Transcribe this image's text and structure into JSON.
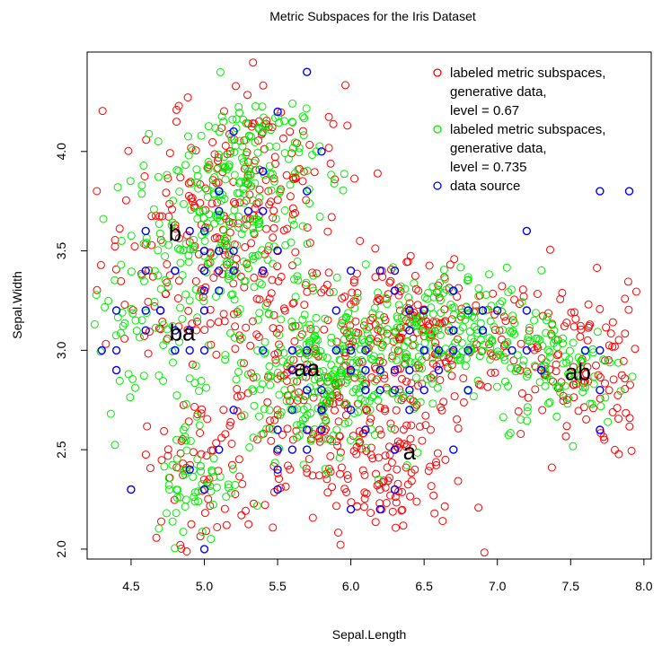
{
  "chart_data": {
    "type": "scatter",
    "title": "Metric Subspaces for the Iris Dataset",
    "xlabel": "Sepal.Length",
    "ylabel": "Sepal.Width",
    "xlim": [
      4.2,
      8.05
    ],
    "ylim": [
      1.95,
      4.5
    ],
    "xticks": [
      "4.5",
      "5.0",
      "5.5",
      "6.0",
      "6.5",
      "7.0",
      "7.5",
      "8.0"
    ],
    "yticks": [
      "2.0",
      "2.5",
      "3.0",
      "3.5",
      "4.0"
    ],
    "legend_position": "top-right",
    "legend": [
      {
        "lines": [
          "labeled metric subspaces,",
          "generative data,",
          "level = 0.67"
        ],
        "color": "#ff0000"
      },
      {
        "lines": [
          "labeled metric subspaces,",
          "generative data,",
          "level = 0.735"
        ],
        "color": "#00ee00"
      },
      {
        "lines": [
          "data source"
        ],
        "color": "#0000ff"
      }
    ],
    "annotations": [
      {
        "text": "b",
        "x": 4.8,
        "y": 3.55
      },
      {
        "text": "ba",
        "x": 4.85,
        "y": 3.05
      },
      {
        "text": "aa",
        "x": 5.7,
        "y": 2.87
      },
      {
        "text": "a",
        "x": 6.4,
        "y": 2.45
      },
      {
        "text": "ab",
        "x": 7.55,
        "y": 2.85
      }
    ],
    "series": [
      {
        "name": "labeled metric subspaces, generative data, level = 0.67",
        "color": "#ff0000",
        "clusters": [
          {
            "cx": 5.05,
            "cy": 3.45,
            "sx": 0.38,
            "sy": 0.28,
            "n": 170
          },
          {
            "cx": 5.35,
            "cy": 3.95,
            "sx": 0.3,
            "sy": 0.22,
            "n": 110
          },
          {
            "cx": 5.9,
            "cy": 2.7,
            "sx": 0.45,
            "sy": 0.28,
            "n": 250
          },
          {
            "cx": 6.45,
            "cy": 3.1,
            "sx": 0.45,
            "sy": 0.2,
            "n": 200
          },
          {
            "cx": 7.5,
            "cy": 2.9,
            "sx": 0.28,
            "sy": 0.22,
            "n": 120
          },
          {
            "cx": 6.3,
            "cy": 2.35,
            "sx": 0.25,
            "sy": 0.15,
            "n": 70
          },
          {
            "cx": 4.95,
            "cy": 2.4,
            "sx": 0.18,
            "sy": 0.18,
            "n": 50
          }
        ]
      },
      {
        "name": "labeled metric subspaces, generative data, level = 0.735",
        "color": "#00ee00",
        "clusters": [
          {
            "cx": 5.1,
            "cy": 3.55,
            "sx": 0.3,
            "sy": 0.24,
            "n": 170
          },
          {
            "cx": 5.35,
            "cy": 3.95,
            "sx": 0.22,
            "sy": 0.2,
            "n": 120
          },
          {
            "cx": 5.8,
            "cy": 2.85,
            "sx": 0.35,
            "sy": 0.2,
            "n": 260
          },
          {
            "cx": 6.6,
            "cy": 3.1,
            "sx": 0.35,
            "sy": 0.15,
            "n": 200
          },
          {
            "cx": 7.45,
            "cy": 2.9,
            "sx": 0.22,
            "sy": 0.15,
            "n": 90
          },
          {
            "cx": 4.95,
            "cy": 2.35,
            "sx": 0.15,
            "sy": 0.16,
            "n": 60
          },
          {
            "cx": 4.5,
            "cy": 3.2,
            "sx": 0.18,
            "sy": 0.25,
            "n": 50
          }
        ]
      },
      {
        "name": "data source",
        "color": "#0000ff",
        "points": [
          [
            5.1,
            3.5
          ],
          [
            4.9,
            3.0
          ],
          [
            4.7,
            3.2
          ],
          [
            4.6,
            3.1
          ],
          [
            5.0,
            3.6
          ],
          [
            5.4,
            3.9
          ],
          [
            4.6,
            3.4
          ],
          [
            5.0,
            3.4
          ],
          [
            4.4,
            2.9
          ],
          [
            4.9,
            3.1
          ],
          [
            5.4,
            3.7
          ],
          [
            4.8,
            3.4
          ],
          [
            4.8,
            3.0
          ],
          [
            4.3,
            3.0
          ],
          [
            5.8,
            4.0
          ],
          [
            5.7,
            4.4
          ],
          [
            5.4,
            3.9
          ],
          [
            5.1,
            3.5
          ],
          [
            5.7,
            3.8
          ],
          [
            5.1,
            3.8
          ],
          [
            5.4,
            3.4
          ],
          [
            5.1,
            3.7
          ],
          [
            4.6,
            3.6
          ],
          [
            5.1,
            3.3
          ],
          [
            4.8,
            3.4
          ],
          [
            5.0,
            3.0
          ],
          [
            5.0,
            3.4
          ],
          [
            5.2,
            3.5
          ],
          [
            5.2,
            3.4
          ],
          [
            4.7,
            3.2
          ],
          [
            4.8,
            3.1
          ],
          [
            5.4,
            3.4
          ],
          [
            5.2,
            4.1
          ],
          [
            5.5,
            4.2
          ],
          [
            4.9,
            3.1
          ],
          [
            5.0,
            3.2
          ],
          [
            5.5,
            3.5
          ],
          [
            4.9,
            3.6
          ],
          [
            4.4,
            3.0
          ],
          [
            5.1,
            3.4
          ],
          [
            5.0,
            3.5
          ],
          [
            4.5,
            2.3
          ],
          [
            4.4,
            3.2
          ],
          [
            5.0,
            3.5
          ],
          [
            5.1,
            3.8
          ],
          [
            4.8,
            3.0
          ],
          [
            5.1,
            3.8
          ],
          [
            4.6,
            3.2
          ],
          [
            5.3,
            3.7
          ],
          [
            5.0,
            3.3
          ],
          [
            7.0,
            3.2
          ],
          [
            6.4,
            3.2
          ],
          [
            6.9,
            3.1
          ],
          [
            5.5,
            2.3
          ],
          [
            6.5,
            2.8
          ],
          [
            5.7,
            2.8
          ],
          [
            6.3,
            3.3
          ],
          [
            4.9,
            2.4
          ],
          [
            6.6,
            2.9
          ],
          [
            5.2,
            2.7
          ],
          [
            5.0,
            2.0
          ],
          [
            5.9,
            3.0
          ],
          [
            6.0,
            2.2
          ],
          [
            6.1,
            2.9
          ],
          [
            5.6,
            2.9
          ],
          [
            6.7,
            3.1
          ],
          [
            5.6,
            3.0
          ],
          [
            5.8,
            2.7
          ],
          [
            6.2,
            2.2
          ],
          [
            5.6,
            2.5
          ],
          [
            5.9,
            3.2
          ],
          [
            6.1,
            2.8
          ],
          [
            6.3,
            2.5
          ],
          [
            6.1,
            2.8
          ],
          [
            6.4,
            2.9
          ],
          [
            6.6,
            3.0
          ],
          [
            6.8,
            2.8
          ],
          [
            6.7,
            3.0
          ],
          [
            6.0,
            2.9
          ],
          [
            5.7,
            2.6
          ],
          [
            5.5,
            2.4
          ],
          [
            5.8,
            2.7
          ],
          [
            6.0,
            2.7
          ],
          [
            5.4,
            3.0
          ],
          [
            6.0,
            3.4
          ],
          [
            6.7,
            3.1
          ],
          [
            6.3,
            2.3
          ],
          [
            5.6,
            3.0
          ],
          [
            5.5,
            2.5
          ],
          [
            5.5,
            2.6
          ],
          [
            6.1,
            3.0
          ],
          [
            5.8,
            2.6
          ],
          [
            5.0,
            2.3
          ],
          [
            5.6,
            2.7
          ],
          [
            5.7,
            3.0
          ],
          [
            5.7,
            2.9
          ],
          [
            6.2,
            2.9
          ],
          [
            5.1,
            2.5
          ],
          [
            5.7,
            2.8
          ],
          [
            6.3,
            3.3
          ],
          [
            5.8,
            2.7
          ],
          [
            7.1,
            3.0
          ],
          [
            6.3,
            2.9
          ],
          [
            6.5,
            3.0
          ],
          [
            7.6,
            3.0
          ],
          [
            7.3,
            2.9
          ],
          [
            6.7,
            2.5
          ],
          [
            7.2,
            3.6
          ],
          [
            6.4,
            2.7
          ],
          [
            6.8,
            3.0
          ],
          [
            5.7,
            2.5
          ],
          [
            6.4,
            3.2
          ],
          [
            7.7,
            3.8
          ],
          [
            7.7,
            2.6
          ],
          [
            6.9,
            3.2
          ],
          [
            7.7,
            2.8
          ],
          [
            6.7,
            3.3
          ],
          [
            7.2,
            3.2
          ],
          [
            6.2,
            2.8
          ],
          [
            6.4,
            2.8
          ],
          [
            7.9,
            3.8
          ],
          [
            6.3,
            2.8
          ],
          [
            6.1,
            2.6
          ],
          [
            7.7,
            3.0
          ],
          [
            6.3,
            3.4
          ],
          [
            6.4,
            3.1
          ],
          [
            6.9,
            3.1
          ],
          [
            6.7,
            3.1
          ],
          [
            6.8,
            3.2
          ],
          [
            6.7,
            3.3
          ],
          [
            6.5,
            3.0
          ],
          [
            6.2,
            3.4
          ],
          [
            5.9,
            3.0
          ],
          [
            6.0,
            3.0
          ],
          [
            5.8,
            2.8
          ],
          [
            6.5,
            3.2
          ],
          [
            7.2,
            3.0
          ],
          [
            6.9,
            3.2
          ],
          [
            6.5,
            3.0
          ],
          [
            6.3,
            2.5
          ]
        ]
      }
    ]
  }
}
